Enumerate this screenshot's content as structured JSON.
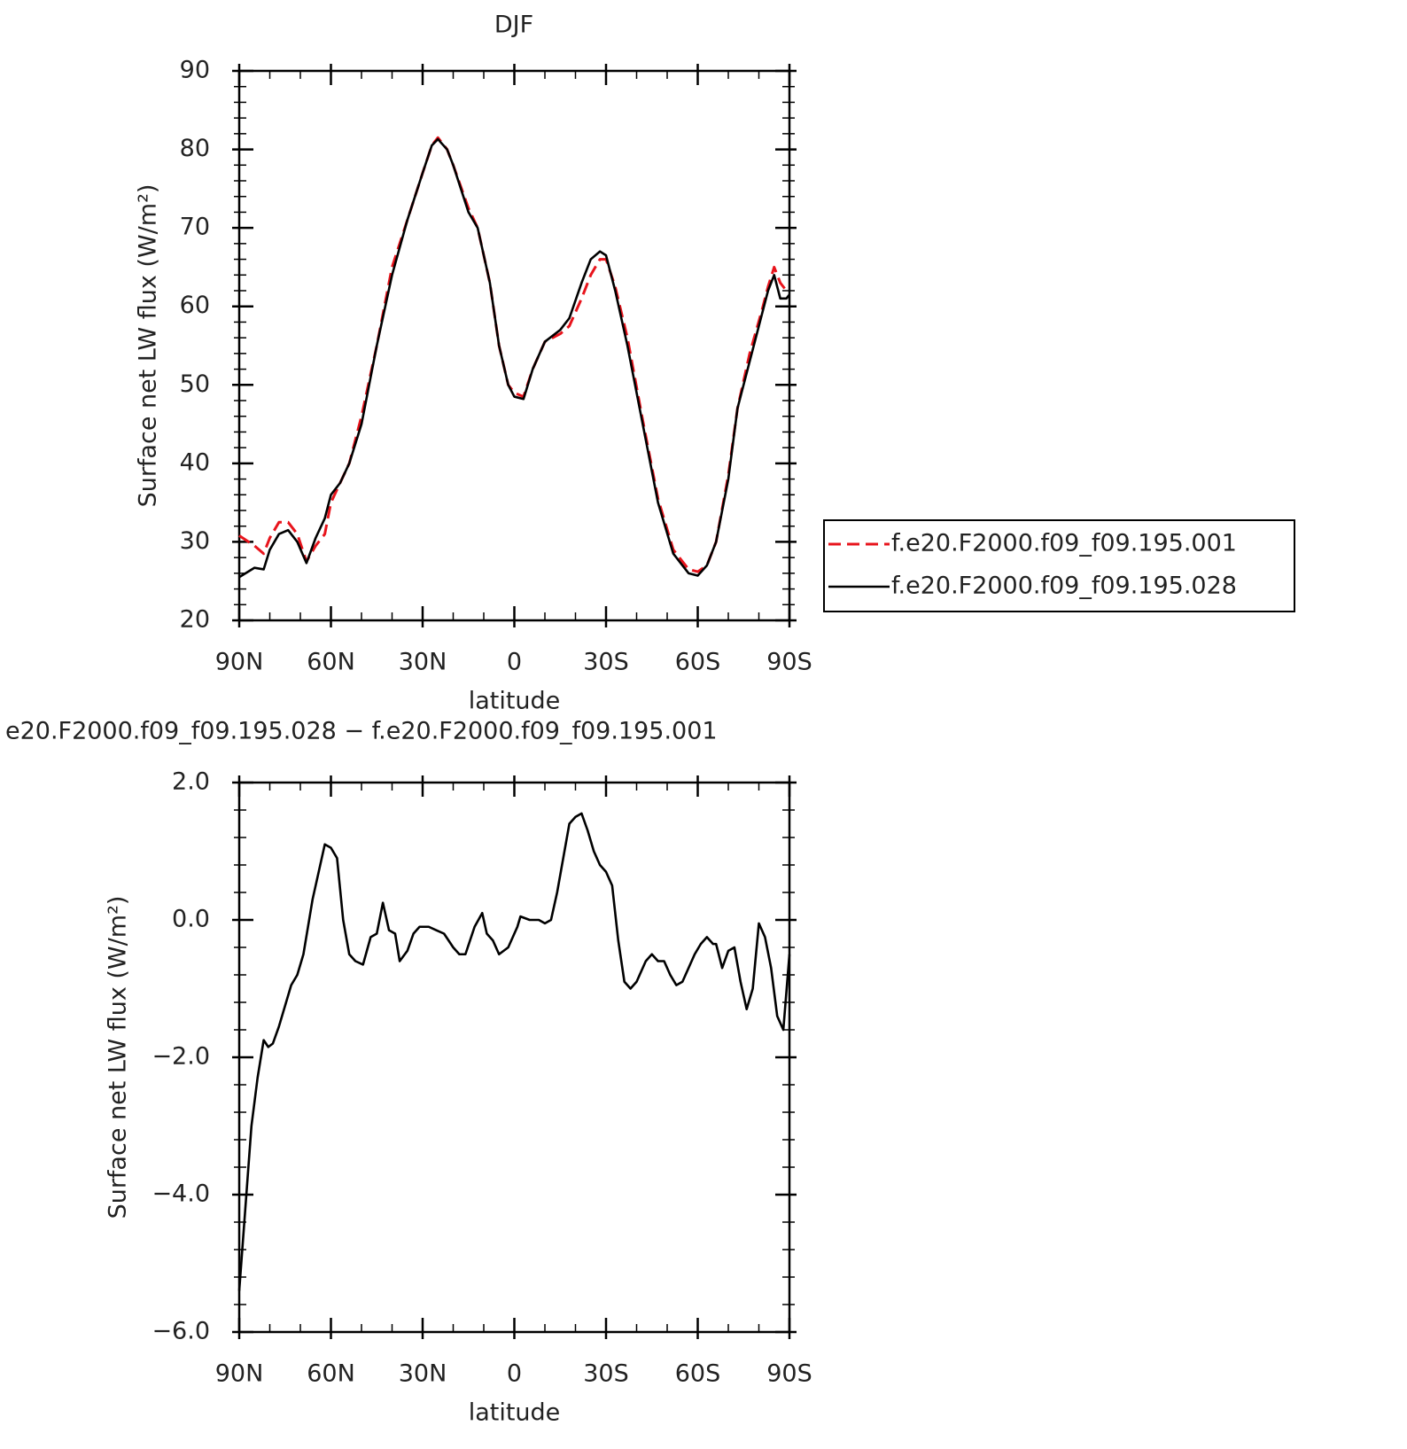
{
  "chart_data": [
    {
      "type": "line",
      "title": "DJF",
      "xlabel": "latitude",
      "ylabel": "Surface net LW flux (W/m²)",
      "xlim": [
        90,
        -90
      ],
      "ylim": [
        20,
        90
      ],
      "xticks": [
        {
          "value": 90,
          "label": "90N"
        },
        {
          "value": 60,
          "label": "60N"
        },
        {
          "value": 30,
          "label": "30N"
        },
        0,
        {
          "value": -30,
          "label": "30S"
        },
        {
          "value": -60,
          "label": "60S"
        },
        {
          "value": -90,
          "label": "90S"
        }
      ],
      "yticks": [
        20,
        30,
        40,
        50,
        60,
        70,
        80,
        90
      ],
      "legend": "right",
      "x": [
        90,
        85,
        82,
        80,
        77,
        74,
        71,
        68,
        65,
        62,
        60,
        57,
        54,
        50,
        45,
        40,
        35,
        30,
        27,
        25,
        22,
        20,
        15,
        12,
        8,
        5,
        2,
        0,
        -3,
        -6,
        -10,
        -15,
        -18,
        -22,
        -25,
        -28,
        -30,
        -33,
        -37,
        -42,
        -47,
        -52,
        -57,
        -60,
        -63,
        -66,
        -70,
        -73,
        -77,
        -81,
        -83,
        -85,
        -87,
        -89,
        -90
      ],
      "series": [
        {
          "name": "f.e20.F2000.f09_f09.195.001",
          "color": "#e8141c",
          "dash": true,
          "values": [
            30.8,
            29.5,
            28.5,
            30.5,
            32.5,
            32.5,
            31,
            27.5,
            29.5,
            31,
            35,
            37.5,
            40,
            46,
            55,
            65,
            71,
            77,
            80.5,
            81.5,
            80,
            78,
            72.5,
            70,
            63,
            55,
            50,
            49,
            48.5,
            52,
            55.5,
            56.5,
            57.5,
            61,
            64,
            66,
            66,
            62.5,
            56,
            45.5,
            35.5,
            29,
            26.5,
            26.2,
            27,
            30,
            38.5,
            47,
            54,
            59.5,
            62.5,
            65,
            63,
            62,
            62
          ]
        },
        {
          "name": "f.e20.F2000.f09_f09.195.028",
          "color": "#000000",
          "dash": false,
          "values": [
            25.5,
            26.7,
            26.5,
            29,
            31,
            31.5,
            30,
            27.3,
            30.5,
            33,
            36,
            37.5,
            40,
            45,
            55,
            64,
            71,
            77,
            80.5,
            81.3,
            80,
            78,
            72,
            70,
            63,
            55,
            50,
            48.5,
            48.2,
            52,
            55.5,
            57,
            58.5,
            63,
            66,
            67,
            66.5,
            62,
            55,
            45,
            35,
            28.5,
            26,
            25.7,
            27,
            30,
            38,
            47,
            53,
            59,
            62,
            64,
            61,
            61,
            61.5
          ]
        }
      ]
    },
    {
      "type": "line",
      "title": "e20.F2000.f09_f09.195.028 − f.e20.F2000.f09_f09.195.001",
      "xlabel": "latitude",
      "ylabel": "Surface net LW flux (W/m²)",
      "xlim": [
        90,
        -90
      ],
      "ylim": [
        -6,
        2
      ],
      "xticks": [
        {
          "value": 90,
          "label": "90N"
        },
        {
          "value": 60,
          "label": "60N"
        },
        {
          "value": 30,
          "label": "30N"
        },
        0,
        {
          "value": -30,
          "label": "30S"
        },
        {
          "value": -60,
          "label": "60S"
        },
        {
          "value": -90,
          "label": "90S"
        }
      ],
      "yticks": [
        {
          "value": -6,
          "label": "−6.0"
        },
        {
          "value": -4,
          "label": "−4.0"
        },
        {
          "value": -2,
          "label": "−2.0"
        },
        {
          "value": 0,
          "label": "0.0"
        },
        {
          "value": 2,
          "label": "2.0"
        }
      ],
      "color": "#000000",
      "x": [
        90,
        88,
        86,
        84,
        82,
        80.5,
        79,
        77,
        75,
        73,
        71,
        69,
        66,
        64,
        62,
        60,
        58,
        56,
        54,
        52,
        49.5,
        47,
        45,
        43,
        41,
        39,
        37.5,
        35,
        33,
        31,
        28,
        25.5,
        23,
        20,
        18,
        16,
        13,
        10.5,
        9,
        7,
        5,
        2,
        -1,
        -2,
        -5,
        -8,
        -10,
        -12,
        -14,
        -18,
        -20,
        -22,
        -24,
        -26,
        -28,
        -30,
        -32,
        -34,
        -36,
        -38,
        -40,
        -43,
        -45,
        -47,
        -49,
        -51,
        -53,
        -55,
        -57,
        -59,
        -61,
        -63,
        -65,
        -66,
        -68,
        -70,
        -72,
        -74,
        -76,
        -78,
        -80,
        -82,
        -84,
        -86,
        -88,
        -90
      ],
      "values": [
        -5.4,
        -4.2,
        -3,
        -2.3,
        -1.75,
        -1.85,
        -1.8,
        -1.55,
        -1.25,
        -0.95,
        -0.8,
        -0.5,
        0.3,
        0.7,
        1.1,
        1.05,
        0.9,
        0,
        -0.5,
        -0.6,
        -0.65,
        -0.25,
        -0.2,
        0.25,
        -0.15,
        -0.2,
        -0.6,
        -0.45,
        -0.2,
        -0.1,
        -0.1,
        -0.15,
        -0.2,
        -0.4,
        -0.5,
        -0.5,
        -0.1,
        0.1,
        -0.2,
        -0.3,
        -0.5,
        -0.4,
        -0.1,
        0.05,
        0,
        0,
        -0.05,
        0,
        0.4,
        1.4,
        1.5,
        1.55,
        1.3,
        1,
        0.8,
        0.7,
        0.5,
        -0.3,
        -0.9,
        -1,
        -0.9,
        -0.6,
        -0.5,
        -0.6,
        -0.6,
        -0.8,
        -0.95,
        -0.9,
        -0.7,
        -0.5,
        -0.35,
        -0.25,
        -0.35,
        -0.35,
        -0.7,
        -0.45,
        -0.4,
        -0.9,
        -1.3,
        -1,
        -0.05,
        -0.25,
        -0.7,
        -1.4,
        -1.6,
        -0.5
      ]
    }
  ]
}
